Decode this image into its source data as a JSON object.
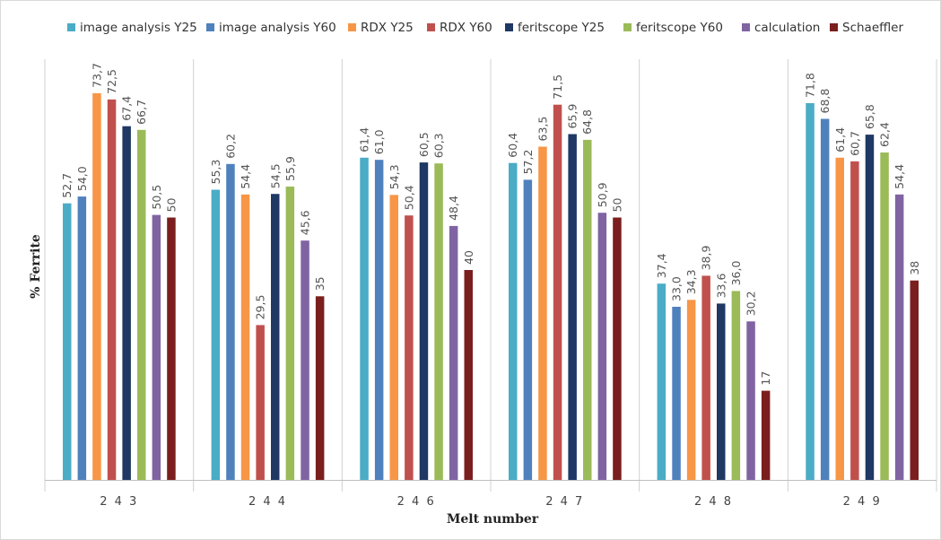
{
  "chart_data": {
    "type": "bar",
    "title": "",
    "xlabel": "Melt number",
    "ylabel": "% Ferrite",
    "ylim": [
      0,
      80
    ],
    "grid": false,
    "legend_position": "top",
    "categories": [
      "2 4 3",
      "2 4 4",
      "2 4 6",
      "2 4 7",
      "2 4 8",
      "2 4 9"
    ],
    "series": [
      {
        "name": "image analysis Y25",
        "color": "#4BACC6",
        "values": [
          52.7,
          55.3,
          61.4,
          60.4,
          37.4,
          71.8
        ],
        "labels": [
          "52,7",
          "55,3",
          "61,4",
          "60,4",
          "37,4",
          "71,8"
        ]
      },
      {
        "name": "image analysis Y60",
        "color": "#4F81BD",
        "values": [
          54.0,
          60.2,
          61.0,
          57.2,
          33.0,
          68.8
        ],
        "labels": [
          "54,0",
          "60,2",
          "61,0",
          "57,2",
          "33,0",
          "68,8"
        ]
      },
      {
        "name": "RDX Y25",
        "color": "#F79646",
        "values": [
          73.7,
          54.4,
          54.3,
          63.5,
          34.3,
          61.4
        ],
        "labels": [
          "73,7",
          "54,4",
          "54,3",
          "63,5",
          "34,3",
          "61,4"
        ]
      },
      {
        "name": "RDX Y60",
        "color": "#C0504D",
        "values": [
          72.5,
          29.5,
          50.4,
          71.5,
          38.9,
          60.7
        ],
        "labels": [
          "72,5",
          "29,5",
          "50,4",
          "71,5",
          "38,9",
          "60,7"
        ]
      },
      {
        "name": "feritscope Y25",
        "color": "#1F3864",
        "values": [
          67.4,
          54.5,
          60.5,
          65.9,
          33.6,
          65.8
        ],
        "labels": [
          "67,4",
          "54,5",
          "60,5",
          "65,9",
          "33,6",
          "65,8"
        ]
      },
      {
        "name": "feritscope Y60",
        "color": "#9BBB59",
        "values": [
          66.7,
          55.9,
          60.3,
          64.8,
          36.0,
          62.4
        ],
        "labels": [
          "66,7",
          "55,9",
          "60,3",
          "64,8",
          "36,0",
          "62,4"
        ]
      },
      {
        "name": "calculation",
        "color": "#8064A2",
        "values": [
          50.5,
          45.6,
          48.4,
          50.9,
          30.2,
          54.4
        ],
        "labels": [
          "50,5",
          "45,6",
          "48,4",
          "50,9",
          "30,2",
          "54,4"
        ]
      },
      {
        "name": "Schaeffler",
        "color": "#7B1E1E",
        "values": [
          50,
          35,
          40,
          50,
          17,
          38
        ],
        "labels": [
          "50",
          "35",
          "40",
          "50",
          "17",
          "38"
        ]
      }
    ]
  }
}
